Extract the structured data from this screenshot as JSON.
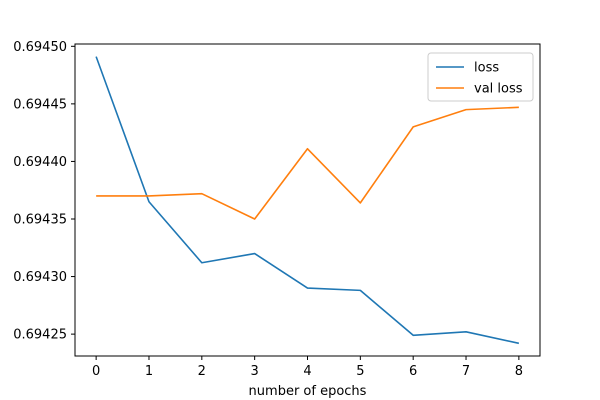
{
  "chart_data": {
    "type": "line",
    "title": "",
    "xlabel": "number of epochs",
    "ylabel": "",
    "x": [
      0,
      1,
      2,
      3,
      4,
      5,
      6,
      7,
      8
    ],
    "xticks": [
      "0",
      "1",
      "2",
      "3",
      "4",
      "5",
      "6",
      "7",
      "8"
    ],
    "yticks": [
      "0.69425",
      "0.69430",
      "0.69435",
      "0.69440",
      "0.69445",
      "0.69450"
    ],
    "xlim": [
      -0.4,
      8.4
    ],
    "ylim": [
      0.694231,
      0.694502
    ],
    "grid": false,
    "legend_position": "top-right",
    "series": [
      {
        "name": "loss",
        "color": "#1f77b4",
        "values": [
          0.694491,
          0.694365,
          0.694312,
          0.69432,
          0.69429,
          0.694288,
          0.694249,
          0.694252,
          0.694242
        ]
      },
      {
        "name": "val loss",
        "color": "#ff7f0e",
        "values": [
          0.69437,
          0.69437,
          0.694372,
          0.69435,
          0.694411,
          0.694364,
          0.69443,
          0.694445,
          0.694447
        ]
      }
    ]
  }
}
